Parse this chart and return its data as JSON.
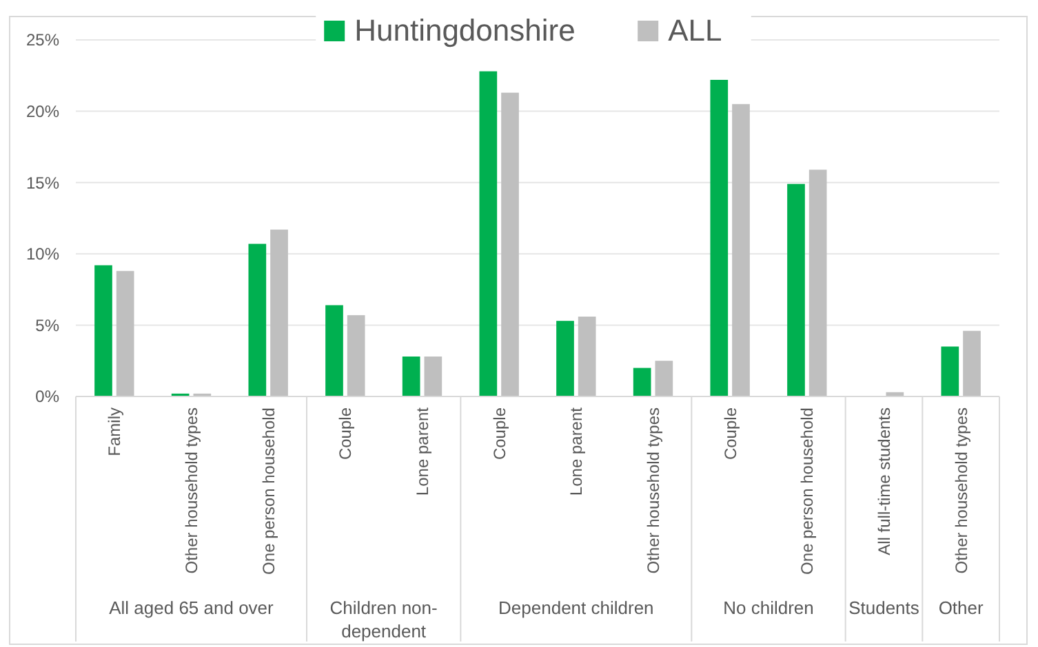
{
  "chart_data": {
    "type": "bar",
    "categories": [
      "Family",
      "Other household types",
      "One person household",
      "Couple",
      "Lone parent",
      "Couple",
      "Lone parent",
      "Other household types",
      "Couple",
      "One person household",
      "All full-time students",
      "Other household types"
    ],
    "series": [
      {
        "name": "Huntingdonshire",
        "color": "#00b050",
        "values": [
          9.2,
          0.2,
          10.7,
          6.4,
          2.8,
          22.8,
          5.3,
          2.0,
          22.2,
          14.9,
          0,
          3.5
        ]
      },
      {
        "name": "ALL",
        "color": "#bfbfbf",
        "values": [
          8.8,
          0.2,
          11.7,
          5.7,
          2.8,
          21.3,
          5.6,
          2.5,
          20.5,
          15.9,
          0.3,
          4.6
        ]
      }
    ],
    "ylim": [
      0,
      25
    ],
    "yticks": [
      {
        "value": 0,
        "label": "0%"
      },
      {
        "value": 5,
        "label": "5%"
      },
      {
        "value": 10,
        "label": "10%"
      },
      {
        "value": 15,
        "label": "15%"
      },
      {
        "value": 20,
        "label": "20%"
      },
      {
        "value": 25,
        "label": "25%"
      }
    ],
    "grid": "y",
    "legend": "top",
    "annotations": [
      "All aged 65 and over",
      "Children non-dependent",
      "Dependent children",
      "No children",
      "Students",
      "Other"
    ]
  }
}
